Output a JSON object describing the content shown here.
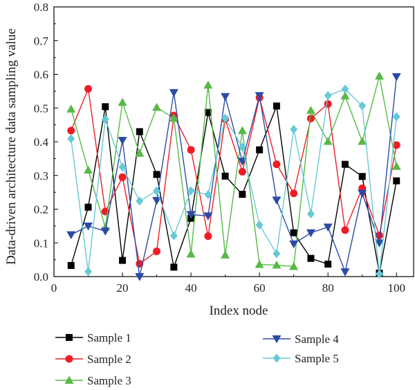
{
  "chart_data": {
    "type": "line",
    "title": "",
    "xlabel": "Index node",
    "ylabel": "Data-driven architecture data sampling value",
    "xlim": [
      0,
      105
    ],
    "ylim": [
      0.0,
      0.8
    ],
    "xticks": [
      0,
      20,
      40,
      60,
      80,
      100
    ],
    "yticks": [
      0.0,
      0.1,
      0.2,
      0.3,
      0.4,
      0.5,
      0.6,
      0.7,
      0.8
    ],
    "x": [
      5,
      10,
      15,
      20,
      25,
      30,
      35,
      40,
      45,
      50,
      55,
      60,
      65,
      70,
      75,
      80,
      85,
      90,
      95,
      100
    ],
    "grid": false,
    "legend_position": "bottom",
    "series": [
      {
        "name": "Sample 1",
        "color": "#000000",
        "marker": "square",
        "values": [
          0.033,
          0.206,
          0.504,
          0.048,
          0.43,
          0.303,
          0.028,
          0.173,
          0.487,
          0.298,
          0.244,
          0.376,
          0.506,
          0.13,
          0.054,
          0.037,
          0.333,
          0.297,
          0.01,
          0.284
        ]
      },
      {
        "name": "Sample 2",
        "color": "#ee1c24",
        "marker": "circle",
        "values": [
          0.433,
          0.557,
          0.193,
          0.295,
          0.038,
          0.075,
          0.478,
          0.376,
          0.12,
          0.467,
          0.311,
          0.531,
          0.333,
          0.247,
          0.469,
          0.512,
          0.138,
          0.262,
          0.122,
          0.39
        ]
      },
      {
        "name": "Sample 3",
        "color": "#57b947",
        "marker": "triangle-up",
        "values": [
          0.497,
          0.316,
          0.146,
          0.517,
          0.366,
          0.502,
          0.47,
          0.067,
          0.568,
          0.064,
          0.433,
          0.036,
          0.034,
          0.03,
          0.493,
          0.401,
          0.536,
          0.401,
          0.595,
          0.327
        ]
      },
      {
        "name": "Sample 4",
        "color": "#2b4aa6",
        "marker": "triangle-down",
        "values": [
          0.124,
          0.15,
          0.135,
          0.404,
          0.0,
          0.226,
          0.546,
          0.184,
          0.18,
          0.534,
          0.342,
          0.537,
          0.227,
          0.097,
          0.13,
          0.147,
          0.014,
          0.247,
          0.1,
          0.593
        ]
      },
      {
        "name": "Sample 5",
        "color": "#67c9d6",
        "marker": "diamond",
        "values": [
          0.409,
          0.015,
          0.467,
          0.325,
          0.224,
          0.254,
          0.121,
          0.255,
          0.243,
          0.47,
          0.384,
          0.153,
          0.068,
          0.437,
          0.186,
          0.537,
          0.556,
          0.507,
          0.008,
          0.474
        ]
      }
    ]
  }
}
